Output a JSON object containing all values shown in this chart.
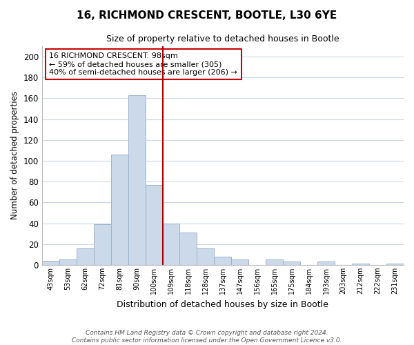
{
  "title": "16, RICHMOND CRESCENT, BOOTLE, L30 6YE",
  "subtitle": "Size of property relative to detached houses in Bootle",
  "xlabel": "Distribution of detached houses by size in Bootle",
  "ylabel": "Number of detached properties",
  "bar_color": "#ccd9e8",
  "bar_edge_color": "#9ab4cc",
  "bins": [
    "43sqm",
    "53sqm",
    "62sqm",
    "72sqm",
    "81sqm",
    "90sqm",
    "100sqm",
    "109sqm",
    "118sqm",
    "128sqm",
    "137sqm",
    "147sqm",
    "156sqm",
    "165sqm",
    "175sqm",
    "184sqm",
    "193sqm",
    "203sqm",
    "212sqm",
    "222sqm",
    "231sqm"
  ],
  "values": [
    4,
    5,
    16,
    39,
    106,
    163,
    77,
    40,
    31,
    16,
    8,
    5,
    0,
    5,
    3,
    0,
    3,
    0,
    1,
    0,
    1
  ],
  "ylim": [
    0,
    210
  ],
  "yticks": [
    0,
    20,
    40,
    60,
    80,
    100,
    120,
    140,
    160,
    180,
    200
  ],
  "property_line_color": "#aa0000",
  "annotation_text": "16 RICHMOND CRESCENT: 98sqm\n← 59% of detached houses are smaller (305)\n40% of semi-detached houses are larger (206) →",
  "annotation_box_color": "#ffffff",
  "annotation_box_edge": "#cc0000",
  "footer_line1": "Contains HM Land Registry data © Crown copyright and database right 2024.",
  "footer_line2": "Contains public sector information licensed under the Open Government Licence v3.0.",
  "background_color": "#ffffff",
  "grid_color": "#ccd8e4"
}
